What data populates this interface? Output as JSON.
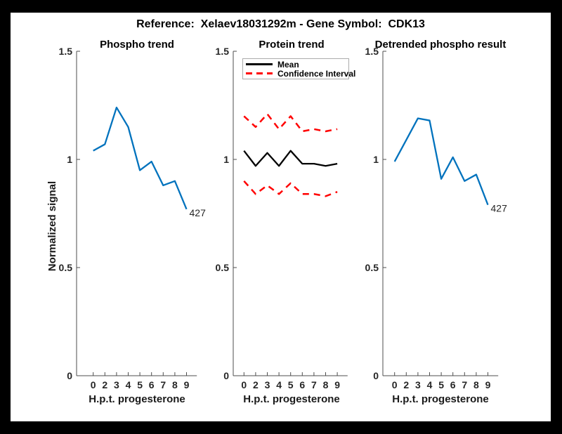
{
  "figure": {
    "title": "Reference:  Xelaev18031292m - Gene Symbol:  CDK13",
    "background": "#000000",
    "canvas_color": "#ffffff"
  },
  "colors": {
    "line_blue": "#0072BD",
    "line_red": "#ff0000",
    "line_black": "#000000",
    "axis": "#4d4d4d",
    "text": "#262626"
  },
  "legend": {
    "items": [
      {
        "label": "Mean",
        "style": "solid",
        "color": "#000000"
      },
      {
        "label": "Confidence Interval",
        "style": "dashed",
        "color": "#ff0000"
      }
    ]
  },
  "chart_data": [
    {
      "type": "line",
      "title": "Phospho trend",
      "xlabel": "H.p.t. progesterone",
      "ylabel": "Normalized signal",
      "categories": [
        "0",
        "2",
        "3",
        "4",
        "5",
        "6",
        "7",
        "8",
        "9"
      ],
      "yticks": [
        "0",
        "0.5",
        "1",
        "1.5"
      ],
      "ytick_values": [
        0,
        0.5,
        1,
        1.5
      ],
      "ylim": [
        0,
        1.5
      ],
      "grid": false,
      "series": [
        {
          "name": "phospho signal",
          "color": "#0072BD",
          "style": "solid",
          "values": [
            1.04,
            1.07,
            1.24,
            1.15,
            0.95,
            0.99,
            0.88,
            0.9,
            0.77
          ],
          "end_label": "427"
        }
      ]
    },
    {
      "type": "line",
      "title": "Protein trend",
      "xlabel": "H.p.t. progesterone",
      "ylabel": "",
      "categories": [
        "0",
        "2",
        "3",
        "4",
        "5",
        "6",
        "7",
        "8",
        "9"
      ],
      "yticks": [
        "0",
        "0.5",
        "1",
        "1.5"
      ],
      "ytick_values": [
        0,
        0.5,
        1,
        1.5
      ],
      "ylim": [
        0,
        1.5
      ],
      "grid": false,
      "legend_position": "top-left",
      "series": [
        {
          "name": "Mean",
          "color": "#000000",
          "style": "solid",
          "values": [
            1.04,
            0.97,
            1.03,
            0.97,
            1.04,
            0.98,
            0.98,
            0.97,
            0.98
          ]
        },
        {
          "name": "Confidence Interval upper",
          "color": "#ff0000",
          "style": "dashed",
          "values": [
            1.2,
            1.15,
            1.21,
            1.14,
            1.2,
            1.13,
            1.14,
            1.13,
            1.14
          ]
        },
        {
          "name": "Confidence Interval lower",
          "color": "#ff0000",
          "style": "dashed",
          "values": [
            0.9,
            0.84,
            0.88,
            0.84,
            0.89,
            0.84,
            0.84,
            0.83,
            0.85
          ]
        }
      ]
    },
    {
      "type": "line",
      "title": "Detrended phospho result",
      "xlabel": "H.p.t. progesterone",
      "ylabel": "",
      "categories": [
        "0",
        "2",
        "3",
        "4",
        "5",
        "6",
        "7",
        "8",
        "9"
      ],
      "yticks": [
        "0",
        "0.5",
        "1",
        "1.5"
      ],
      "ytick_values": [
        0,
        0.5,
        1,
        1.5
      ],
      "ylim": [
        0,
        1.5
      ],
      "grid": false,
      "series": [
        {
          "name": "detrended phospho signal",
          "color": "#0072BD",
          "style": "solid",
          "values": [
            0.99,
            1.09,
            1.19,
            1.18,
            0.91,
            1.01,
            0.9,
            0.93,
            0.79
          ],
          "end_label": "427"
        }
      ]
    }
  ]
}
